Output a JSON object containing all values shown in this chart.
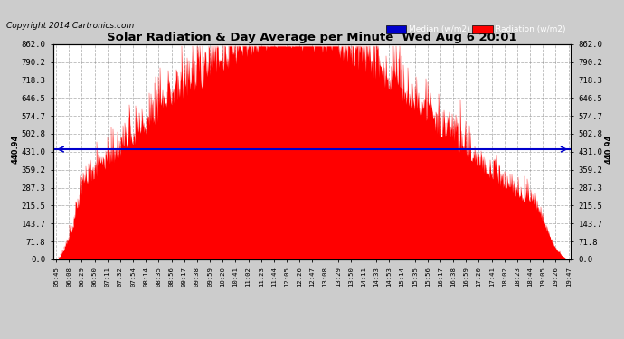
{
  "title": "Solar Radiation & Day Average per Minute  Wed Aug 6 20:01",
  "copyright": "Copyright 2014 Cartronics.com",
  "median_value": 440.94,
  "ymax": 862.0,
  "yticks": [
    0.0,
    71.8,
    143.7,
    215.5,
    287.3,
    359.2,
    431.0,
    502.8,
    574.7,
    646.5,
    718.3,
    790.2,
    862.0
  ],
  "bar_color": "#ff0000",
  "median_color": "#0000cc",
  "plot_bg_color": "#ffffff",
  "fig_bg_color": "#cccccc",
  "grid_color": "#888888",
  "legend_median_bg": "#0000cc",
  "legend_radiation_bg": "#ff0000",
  "x_tick_labels": [
    "05:45",
    "06:08",
    "06:29",
    "06:50",
    "07:11",
    "07:32",
    "07:54",
    "08:14",
    "08:35",
    "08:56",
    "09:17",
    "09:38",
    "09:59",
    "10:20",
    "10:41",
    "11:02",
    "11:23",
    "11:44",
    "12:05",
    "12:26",
    "12:47",
    "13:08",
    "13:29",
    "13:50",
    "14:11",
    "14:33",
    "14:53",
    "15:14",
    "15:35",
    "15:56",
    "16:17",
    "16:38",
    "16:59",
    "17:20",
    "17:41",
    "18:02",
    "18:23",
    "18:44",
    "19:05",
    "19:26",
    "19:47"
  ],
  "num_points": 840,
  "seed": 12345
}
